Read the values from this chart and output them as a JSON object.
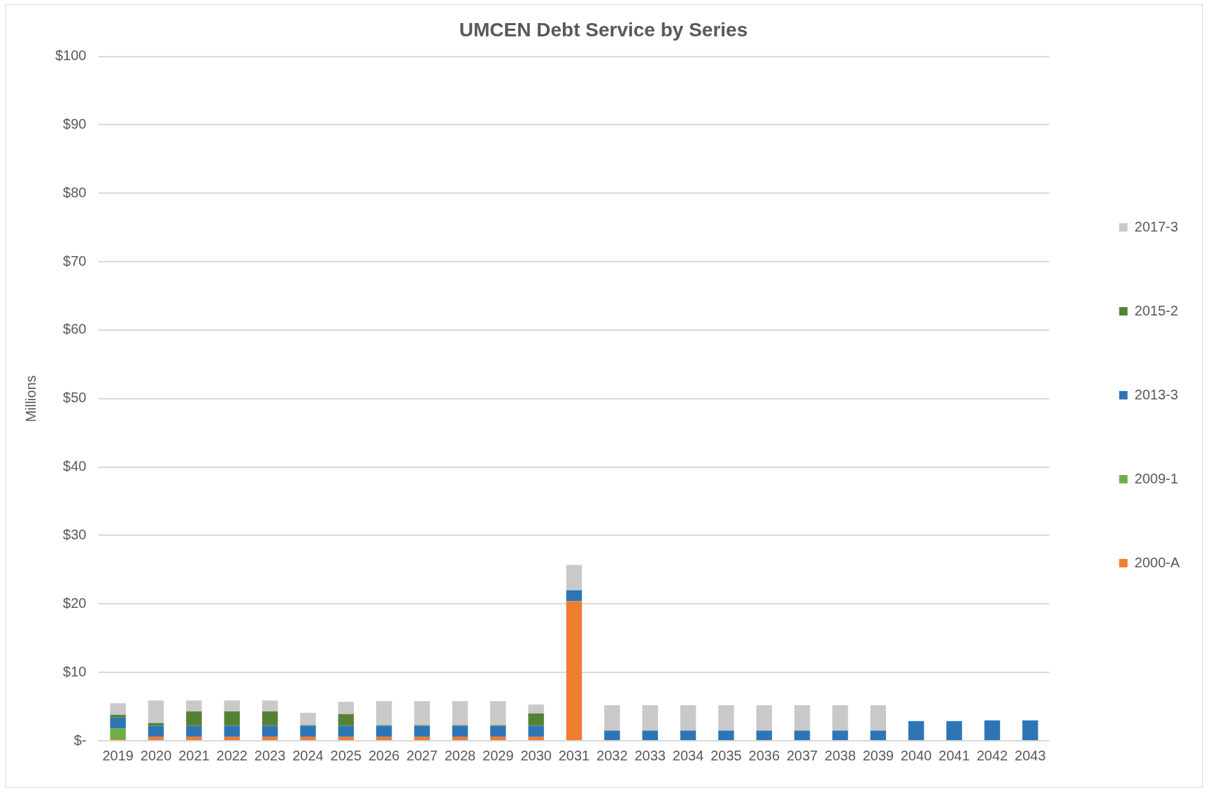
{
  "chart_data": {
    "type": "bar",
    "title": "UMCEN Debt Service by Series",
    "ylabel": "Millions",
    "categories": [
      "2019",
      "2020",
      "2021",
      "2022",
      "2023",
      "2024",
      "2025",
      "2026",
      "2027",
      "2028",
      "2029",
      "2030",
      "2031",
      "2032",
      "2033",
      "2034",
      "2035",
      "2036",
      "2037",
      "2038",
      "2039",
      "2040",
      "2041",
      "2042",
      "2043"
    ],
    "stacked": true,
    "legend": "right",
    "grid": "y",
    "ylim": [
      0,
      100
    ],
    "yticks": [
      {
        "value": 0,
        "label": "$-"
      },
      {
        "value": 10,
        "label": "$10"
      },
      {
        "value": 20,
        "label": "$20"
      },
      {
        "value": 30,
        "label": "$30"
      },
      {
        "value": 40,
        "label": "$40"
      },
      {
        "value": 50,
        "label": "$50"
      },
      {
        "value": 60,
        "label": "$60"
      },
      {
        "value": 70,
        "label": "$70"
      },
      {
        "value": 80,
        "label": "$80"
      },
      {
        "value": 90,
        "label": "$90"
      },
      {
        "value": 100,
        "label": "$100"
      }
    ],
    "series": [
      {
        "name": "2000-A",
        "color": "#ed7d31",
        "values": [
          0.2,
          0.6,
          0.6,
          0.6,
          0.6,
          0.6,
          0.6,
          0.6,
          0.6,
          0.6,
          0.6,
          0.6,
          20.4,
          null,
          null,
          null,
          null,
          null,
          null,
          null,
          null,
          null,
          null,
          null,
          null
        ]
      },
      {
        "name": "2009-1",
        "color": "#70ad47",
        "values": [
          1.6,
          null,
          null,
          null,
          null,
          null,
          null,
          null,
          null,
          null,
          null,
          null,
          null,
          null,
          null,
          null,
          null,
          null,
          null,
          null,
          null,
          null,
          null,
          null,
          null
        ]
      },
      {
        "name": "2013-3",
        "color": "#2e75b6",
        "values": [
          1.6,
          1.6,
          1.6,
          1.6,
          1.6,
          1.6,
          1.6,
          1.6,
          1.6,
          1.6,
          1.6,
          1.6,
          1.6,
          1.5,
          1.5,
          1.5,
          1.5,
          1.5,
          1.5,
          1.5,
          1.5,
          2.9,
          2.9,
          3.0,
          3.0
        ]
      },
      {
        "name": "2015-2",
        "color": "#548235",
        "values": [
          0.4,
          0.4,
          2.1,
          2.1,
          2.1,
          0.1,
          1.7,
          0.1,
          0.1,
          0.1,
          0.1,
          1.8,
          null,
          null,
          null,
          null,
          null,
          null,
          null,
          null,
          null,
          null,
          null,
          null,
          null
        ]
      },
      {
        "name": "2017-3",
        "color": "#c9c9c9",
        "values": [
          1.7,
          3.3,
          1.6,
          1.6,
          1.6,
          1.8,
          1.8,
          3.5,
          3.5,
          3.5,
          3.5,
          1.3,
          3.7,
          3.7,
          3.7,
          3.7,
          3.7,
          3.7,
          3.7,
          3.7,
          3.7,
          null,
          null,
          null,
          null
        ]
      }
    ]
  }
}
